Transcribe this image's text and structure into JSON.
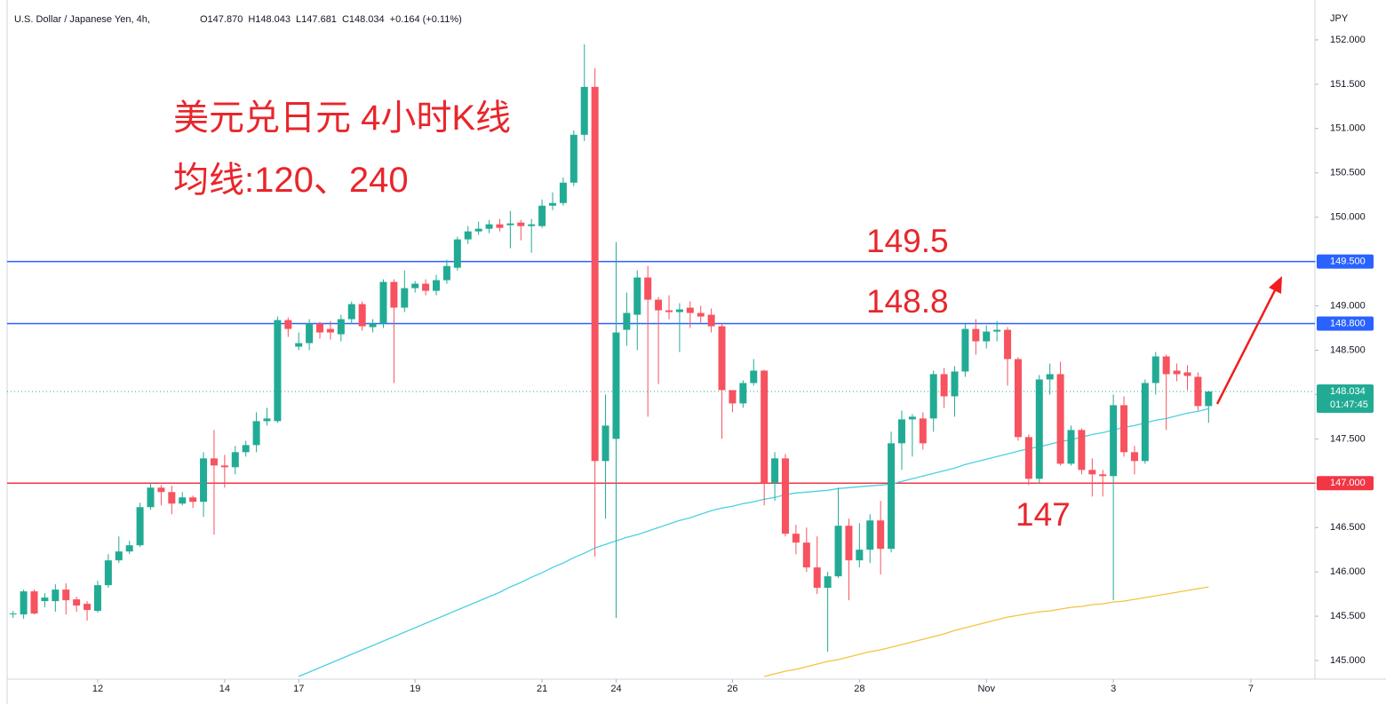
{
  "chart_data": {
    "type": "candlestick",
    "symbol": "U.S. Dollar / Japanese Yen, 4h,",
    "header": [
      "O147.870",
      "H148.043",
      "L147.681",
      "C148.034",
      "+0.164 (+0.11%)"
    ],
    "currency": "JPY",
    "title_lines": [
      "美元兑日元 4小时K线",
      "均线:120、240"
    ],
    "annotations": [
      "149.5",
      "148.8",
      "147"
    ],
    "up_color": "#22ab94",
    "down_color": "#f7525f",
    "categories": [
      null,
      null,
      null,
      null,
      null,
      null,
      null,
      null,
      "12",
      null,
      null,
      null,
      null,
      null,
      null,
      null,
      null,
      null,
      null,
      null,
      "14",
      null,
      null,
      null,
      null,
      null,
      null,
      "17",
      null,
      null,
      null,
      null,
      null,
      null,
      null,
      null,
      null,
      null,
      "19",
      null,
      null,
      null,
      null,
      null,
      null,
      null,
      null,
      null,
      null,
      null,
      "21",
      null,
      null,
      null,
      null,
      null,
      null,
      "24",
      null,
      null,
      null,
      null,
      null,
      null,
      null,
      null,
      null,
      null,
      "26",
      null,
      null,
      null,
      null,
      null,
      null,
      null,
      null,
      null,
      null,
      null,
      "28",
      null,
      null,
      null,
      null,
      null,
      null,
      null,
      null,
      null,
      null,
      null,
      "Nov",
      null,
      null,
      null,
      null,
      null,
      null,
      null,
      null,
      null,
      null,
      null,
      "3",
      null,
      null,
      null,
      null,
      null,
      null,
      null,
      null,
      null,
      null,
      null,
      null,
      "7"
    ],
    "open": [
      145.52,
      145.52,
      145.78,
      145.67,
      145.67,
      145.8,
      145.69,
      145.64,
      145.56,
      145.85,
      146.13,
      146.23,
      146.3,
      146.73,
      146.95,
      146.9,
      146.77,
      146.84,
      146.79,
      147.28,
      147.2,
      147.18,
      147.35,
      147.43,
      147.7,
      147.7,
      148.84,
      148.54,
      148.58,
      148.8,
      148.74,
      148.68,
      148.85,
      149.02,
      148.76,
      148.8,
      149.27,
      148.98,
      149.2,
      149.25,
      149.17,
      149.29,
      149.43,
      149.75,
      149.84,
      149.87,
      149.92,
      149.91,
      149.94,
      149.9,
      149.9,
      150.13,
      150.16,
      150.39,
      150.93,
      151.47,
      147.25,
      147.5,
      148.73,
      148.9,
      149.32,
      149.07,
      148.95,
      148.93,
      148.98,
      148.92,
      148.9,
      148.77,
      148.05,
      147.9,
      148.13,
      148.27,
      147.0,
      147.28,
      146.43,
      146.33,
      146.05,
      145.82,
      145.95,
      146.52,
      146.13,
      146.25,
      146.58,
      146.26,
      147.45,
      147.72,
      147.73,
      147.73,
      148.23,
      147.98,
      148.26,
      148.74,
      148.6,
      148.71,
      148.73,
      148.4,
      147.52,
      147.05,
      148.17,
      148.23,
      147.22,
      147.6,
      147.15,
      147.1,
      147.08,
      147.88,
      147.35,
      147.25,
      148.13,
      148.43,
      148.27,
      148.25,
      148.2,
      147.87,
      null,
      null,
      null,
      null
    ],
    "high": [
      145.56,
      145.8,
      145.8,
      145.76,
      145.86,
      145.87,
      145.72,
      145.67,
      145.9,
      146.2,
      146.4,
      146.35,
      146.78,
      147.0,
      146.98,
      146.97,
      146.9,
      146.86,
      147.35,
      147.6,
      147.32,
      147.42,
      147.48,
      147.8,
      147.85,
      148.88,
      148.87,
      148.7,
      148.85,
      148.82,
      148.83,
      148.9,
      149.05,
      149.05,
      148.85,
      149.3,
      149.3,
      149.4,
      149.28,
      149.3,
      149.35,
      149.52,
      149.78,
      149.9,
      149.95,
      149.97,
      149.98,
      150.07,
      149.97,
      149.98,
      150.2,
      150.28,
      150.45,
      150.98,
      151.95,
      151.68,
      148.0,
      149.72,
      149.15,
      149.4,
      149.45,
      149.1,
      149.12,
      149.03,
      149.05,
      149.0,
      148.97,
      148.8,
      148.05,
      148.16,
      148.4,
      148.28,
      147.35,
      147.33,
      146.53,
      146.5,
      146.4,
      146.0,
      146.95,
      146.6,
      146.55,
      146.65,
      146.8,
      147.58,
      147.82,
      147.78,
      147.8,
      148.27,
      148.3,
      148.32,
      148.8,
      148.85,
      148.78,
      148.83,
      148.76,
      148.42,
      147.55,
      148.22,
      148.35,
      148.37,
      147.65,
      147.62,
      147.28,
      147.15,
      148.0,
      147.98,
      147.42,
      148.17,
      148.48,
      148.45,
      148.35,
      148.33,
      148.25,
      148.043,
      null,
      null,
      null,
      null
    ],
    "low": [
      145.48,
      145.47,
      145.52,
      145.6,
      145.55,
      145.52,
      145.55,
      145.45,
      145.54,
      145.82,
      146.1,
      146.2,
      146.28,
      146.7,
      146.75,
      146.65,
      146.75,
      146.72,
      146.62,
      146.42,
      146.95,
      147.1,
      147.3,
      147.35,
      147.65,
      147.68,
      148.65,
      148.5,
      148.5,
      148.63,
      148.62,
      148.6,
      148.8,
      148.72,
      148.7,
      148.75,
      148.13,
      148.93,
      149.15,
      149.12,
      149.12,
      149.25,
      149.4,
      149.7,
      149.8,
      149.82,
      149.84,
      149.65,
      149.74,
      149.6,
      149.88,
      150.08,
      150.13,
      150.35,
      150.86,
      146.17,
      146.6,
      145.48,
      148.55,
      148.5,
      147.75,
      148.12,
      148.85,
      148.48,
      148.75,
      148.8,
      148.7,
      147.5,
      147.8,
      147.85,
      148.1,
      146.75,
      146.8,
      146.4,
      146.2,
      146.0,
      145.75,
      145.1,
      145.93,
      145.68,
      146.05,
      146.1,
      145.97,
      146.22,
      147.15,
      147.3,
      147.38,
      147.58,
      147.85,
      147.75,
      148.2,
      148.45,
      148.52,
      148.6,
      148.1,
      147.48,
      146.98,
      147.0,
      148.0,
      147.2,
      147.2,
      147.1,
      146.85,
      146.85,
      145.68,
      147.3,
      147.1,
      147.22,
      148.0,
      147.6,
      148.15,
      148.05,
      147.82,
      147.681,
      null,
      null,
      null,
      null
    ],
    "close": [
      145.53,
      145.78,
      145.53,
      145.71,
      145.8,
      145.68,
      145.62,
      145.57,
      145.85,
      146.13,
      146.23,
      146.3,
      146.73,
      146.95,
      146.9,
      146.77,
      146.84,
      146.79,
      147.28,
      147.2,
      147.18,
      147.35,
      147.43,
      147.7,
      147.73,
      148.84,
      148.74,
      148.58,
      148.8,
      148.7,
      148.7,
      148.85,
      149.02,
      148.77,
      148.8,
      149.27,
      148.98,
      149.2,
      149.25,
      149.17,
      149.29,
      149.45,
      149.75,
      149.84,
      149.87,
      149.92,
      149.88,
      149.93,
      149.9,
      149.92,
      150.13,
      150.16,
      150.39,
      150.93,
      151.47,
      147.25,
      147.65,
      148.7,
      148.92,
      149.32,
      149.07,
      148.95,
      148.93,
      148.96,
      148.92,
      148.88,
      148.77,
      148.05,
      147.9,
      148.13,
      148.27,
      147.0,
      147.28,
      146.43,
      146.33,
      146.05,
      145.82,
      145.95,
      146.52,
      146.13,
      146.25,
      146.58,
      146.26,
      147.45,
      147.72,
      147.75,
      147.45,
      148.23,
      147.98,
      148.26,
      148.74,
      148.6,
      148.71,
      148.73,
      148.4,
      147.52,
      147.05,
      148.17,
      148.23,
      147.22,
      147.6,
      147.15,
      147.1,
      147.08,
      147.88,
      147.35,
      147.25,
      148.13,
      148.43,
      148.23,
      148.23,
      148.21,
      147.87,
      148.034,
      null,
      null,
      null,
      null
    ],
    "overlays": [
      {
        "color": "#4dd0e1",
        "values": [
          null,
          null,
          null,
          null,
          null,
          null,
          null,
          null,
          null,
          null,
          null,
          null,
          null,
          null,
          null,
          null,
          null,
          null,
          null,
          null,
          null,
          null,
          null,
          null,
          null,
          null,
          null,
          144.82,
          144.87,
          144.92,
          144.97,
          145.02,
          145.07,
          145.12,
          145.17,
          145.22,
          145.27,
          145.32,
          145.37,
          145.42,
          145.47,
          145.52,
          145.57,
          145.62,
          145.67,
          145.72,
          145.77,
          145.83,
          145.88,
          145.94,
          145.99,
          146.05,
          146.1,
          146.16,
          146.21,
          146.27,
          146.31,
          146.35,
          146.39,
          146.42,
          146.46,
          146.5,
          146.54,
          146.58,
          146.61,
          146.65,
          146.69,
          146.72,
          146.74,
          146.77,
          146.79,
          146.82,
          146.84,
          146.87,
          146.89,
          146.9,
          146.91,
          146.92,
          146.94,
          146.95,
          146.96,
          146.97,
          146.98,
          146.99,
          147.02,
          147.05,
          147.08,
          147.11,
          147.14,
          147.17,
          147.21,
          147.24,
          147.27,
          147.3,
          147.33,
          147.36,
          147.39,
          147.41,
          147.44,
          147.47,
          147.49,
          147.52,
          147.55,
          147.57,
          147.6,
          147.63,
          147.65,
          147.68,
          147.71,
          147.73,
          147.76,
          147.79,
          147.81,
          147.84,
          null,
          null,
          null,
          null
        ]
      },
      {
        "color": "#f5c242",
        "values": [
          null,
          null,
          null,
          null,
          null,
          null,
          null,
          null,
          null,
          null,
          null,
          null,
          null,
          null,
          null,
          null,
          null,
          null,
          null,
          null,
          null,
          null,
          null,
          null,
          null,
          null,
          null,
          null,
          null,
          null,
          null,
          null,
          null,
          null,
          null,
          null,
          null,
          null,
          null,
          null,
          null,
          null,
          null,
          null,
          null,
          null,
          null,
          null,
          null,
          null,
          null,
          null,
          null,
          null,
          null,
          null,
          null,
          null,
          null,
          null,
          null,
          null,
          null,
          null,
          null,
          null,
          null,
          null,
          null,
          null,
          null,
          144.82,
          144.85,
          144.88,
          144.9,
          144.93,
          144.96,
          144.99,
          145.01,
          145.04,
          145.07,
          145.1,
          145.12,
          145.15,
          145.18,
          145.21,
          145.24,
          145.27,
          145.3,
          145.34,
          145.37,
          145.4,
          145.43,
          145.46,
          145.49,
          145.51,
          145.53,
          145.55,
          145.56,
          145.58,
          145.6,
          145.61,
          145.63,
          145.64,
          145.66,
          145.67,
          145.69,
          145.71,
          145.73,
          145.75,
          145.77,
          145.79,
          145.81,
          145.83,
          null,
          null,
          null,
          null
        ]
      }
    ],
    "hlines": [
      {
        "value": 149.5,
        "label": "149.500",
        "color": "#2962ff"
      },
      {
        "value": 148.8,
        "label": "148.800",
        "color": "#2962ff"
      },
      {
        "value": 147,
        "label": "147.000",
        "color": "#f23645"
      }
    ],
    "last_price": {
      "value": 148.034,
      "label": "148.034"
    },
    "countdown": "01:47:45",
    "ylim": [
      144.79,
      152.35
    ],
    "yticks": [
      {
        "value": 145,
        "label": "145.000"
      },
      {
        "value": 145.5,
        "label": "145.500"
      },
      {
        "value": 146,
        "label": "146.000"
      },
      {
        "value": 146.5,
        "label": "146.500"
      },
      {
        "value": 147,
        "label": "147.000"
      },
      {
        "value": 147.5,
        "label": "147.500"
      },
      {
        "value": 148,
        "label": "148.000"
      },
      {
        "value": 148.5,
        "label": "148.500"
      },
      {
        "value": 149,
        "label": "149.000"
      },
      {
        "value": 149.5,
        "label": "149.500"
      },
      {
        "value": 150,
        "label": "150.000"
      },
      {
        "value": 150.5,
        "label": "150.500"
      },
      {
        "value": 151,
        "label": "151.000"
      },
      {
        "value": 151.5,
        "label": "151.500"
      },
      {
        "value": 152,
        "label": "152.000"
      }
    ],
    "grid": false
  }
}
